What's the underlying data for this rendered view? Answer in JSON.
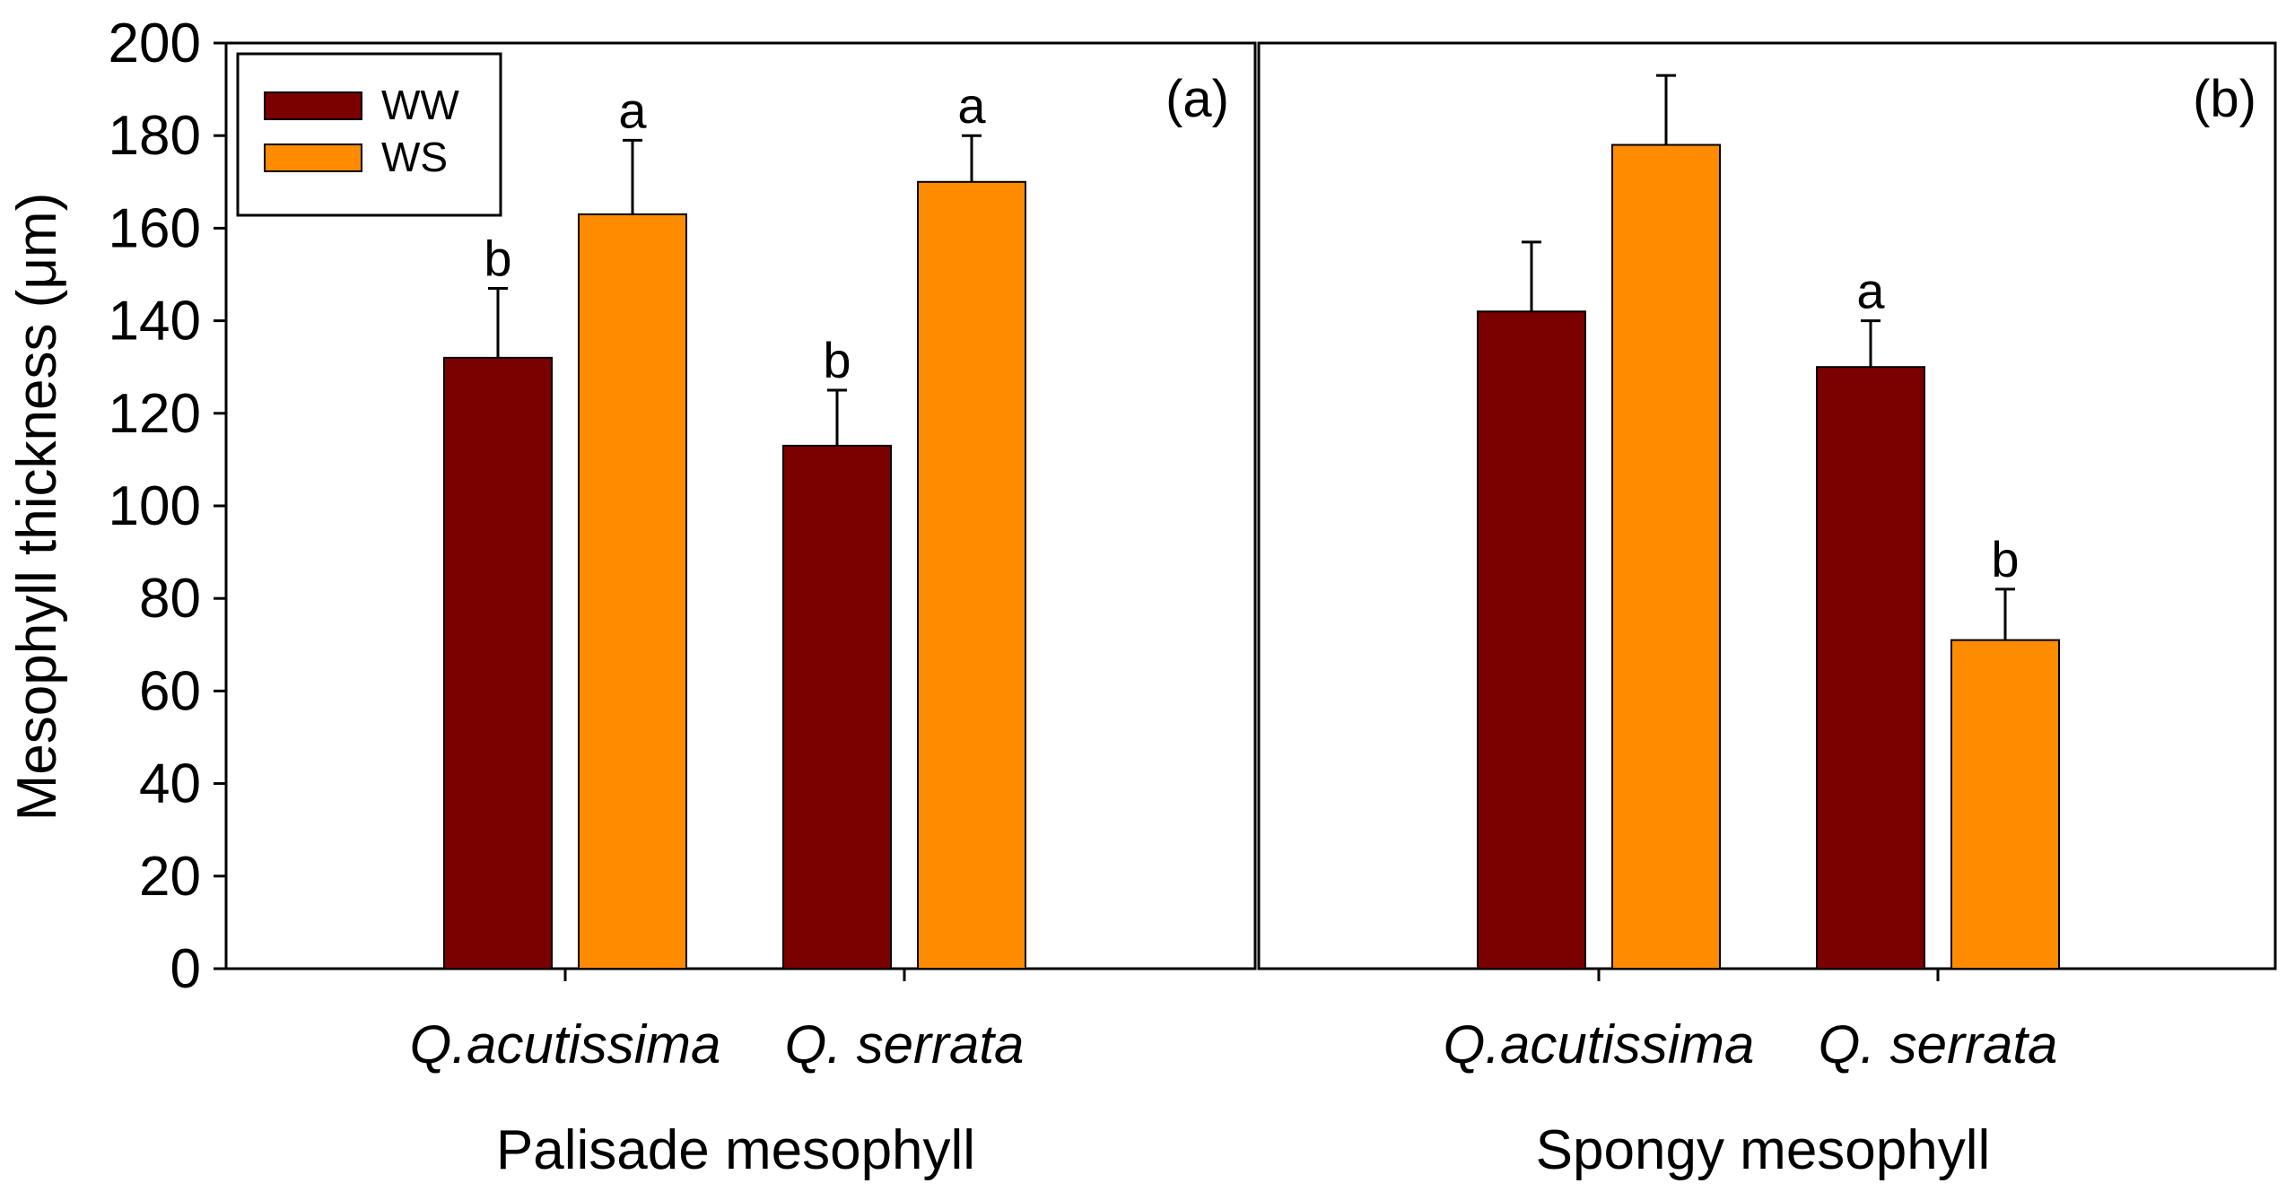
{
  "chart_data": [
    {
      "type": "bar",
      "panel_label": "(a)",
      "xlabel": "Palisade mesophyll",
      "ylabel": "Mesophyll thickness (μm)",
      "ylim": [
        0,
        200
      ],
      "yticks": [
        0,
        20,
        40,
        60,
        80,
        100,
        120,
        140,
        160,
        180,
        200
      ],
      "categories": [
        "Q.acutissima",
        "Q. serrata"
      ],
      "series": [
        {
          "name": "WW",
          "color": "#7b0000",
          "values": [
            132,
            113
          ],
          "errors": [
            15,
            12
          ],
          "letters": [
            "b",
            "b"
          ]
        },
        {
          "name": "WS",
          "color": "#ff8c00",
          "values": [
            163,
            170
          ],
          "errors": [
            16,
            10
          ],
          "letters": [
            "a",
            "a"
          ]
        }
      ],
      "legend": {
        "placement": "top-left",
        "entries": [
          "WW",
          "WS"
        ]
      }
    },
    {
      "type": "bar",
      "panel_label": "(b)",
      "xlabel": "Spongy mesophyll",
      "ylim": [
        0,
        200
      ],
      "categories": [
        "Q.acutissima",
        "Q. serrata"
      ],
      "series": [
        {
          "name": "WW",
          "color": "#7b0000",
          "values": [
            142,
            130
          ],
          "errors": [
            15,
            10
          ],
          "letters": [
            "",
            "a"
          ]
        },
        {
          "name": "WS",
          "color": "#ff8c00",
          "values": [
            178,
            71
          ],
          "errors": [
            15,
            11
          ],
          "letters": [
            "",
            "b"
          ]
        }
      ]
    }
  ]
}
